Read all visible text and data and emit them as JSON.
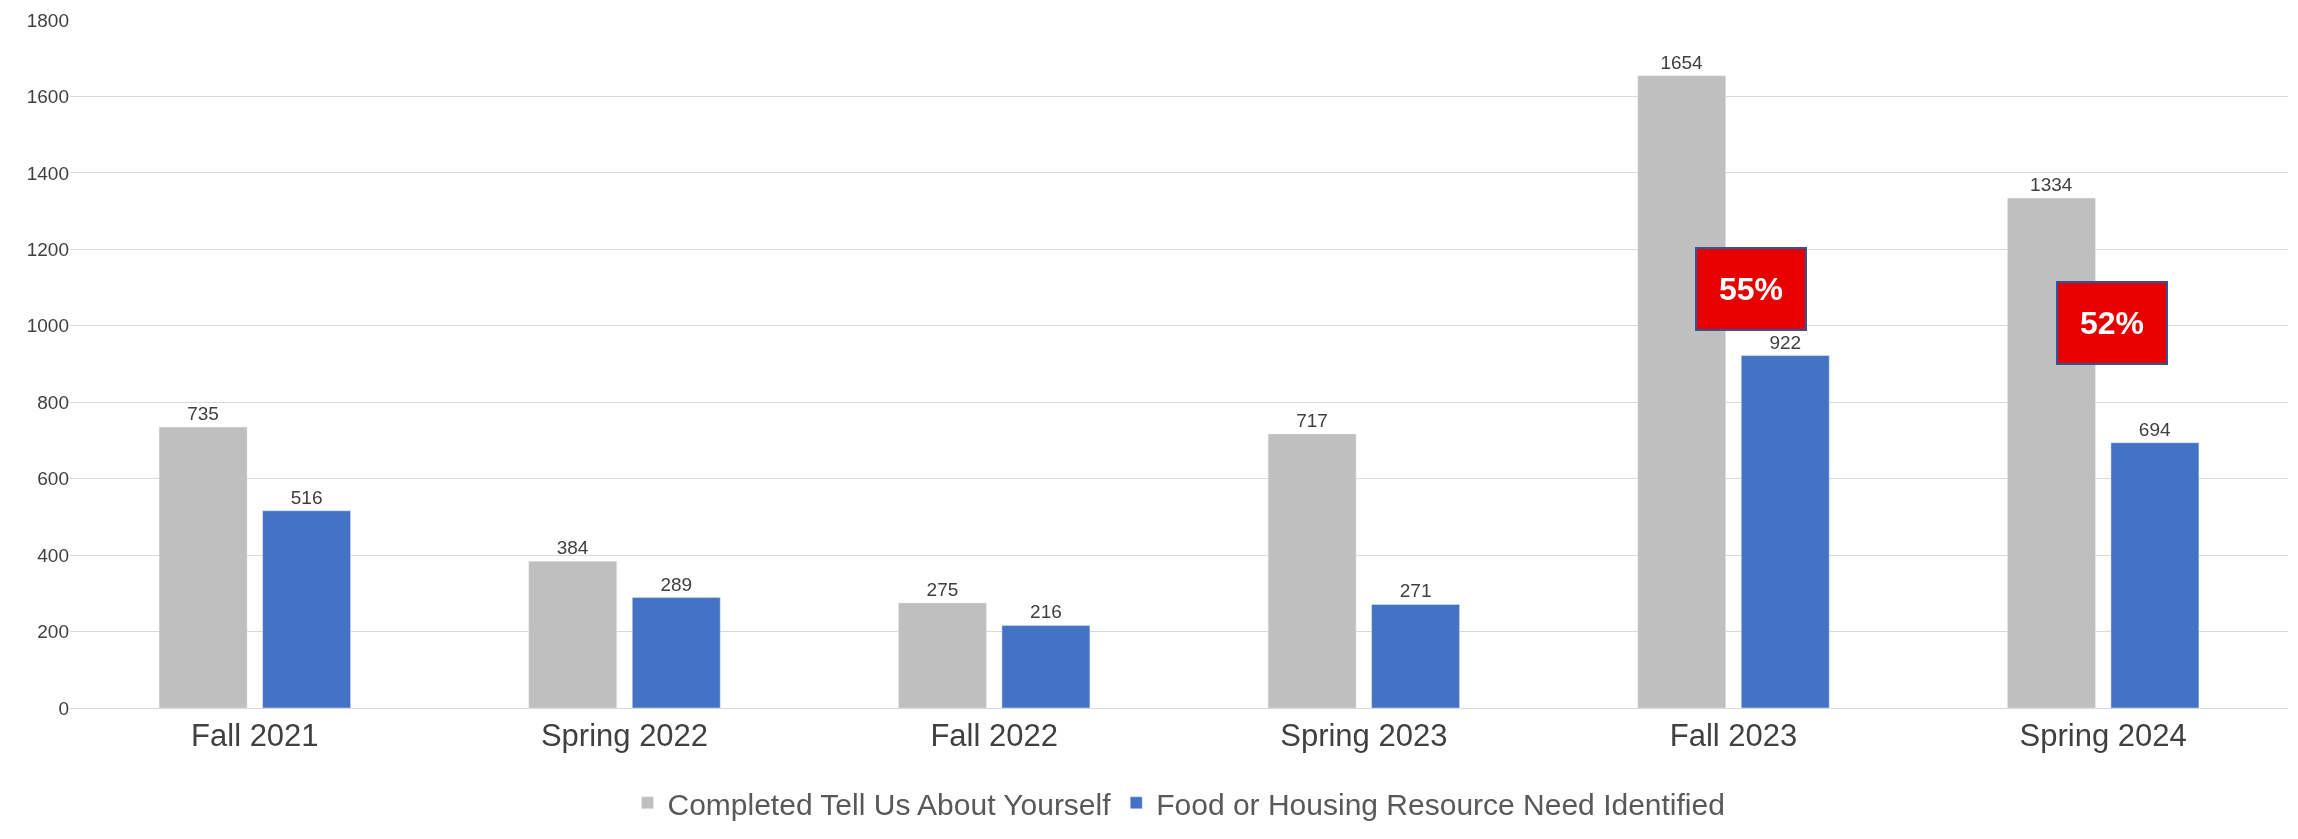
{
  "chart_data": {
    "type": "bar",
    "categories": [
      "Fall 2021",
      "Spring 2022",
      "Fall 2022",
      "Spring 2023",
      "Fall 2023",
      "Spring 2024"
    ],
    "series": [
      {
        "name": "Completed Tell Us About Yourself",
        "color": "#bfbfbf",
        "values": [
          735,
          384,
          275,
          717,
          1654,
          1334
        ]
      },
      {
        "name": "Food or Housing Resource Need Identified",
        "color": "#4472c4",
        "values": [
          516,
          289,
          216,
          271,
          922,
          694
        ]
      }
    ],
    "ylim": [
      0,
      1800
    ],
    "yticks": [
      0,
      200,
      400,
      600,
      800,
      1000,
      1200,
      1400,
      1600,
      1800
    ],
    "grid": "y",
    "legend": "bottom",
    "data_labels": true,
    "annotations": [
      "55%",
      "52%"
    ]
  }
}
